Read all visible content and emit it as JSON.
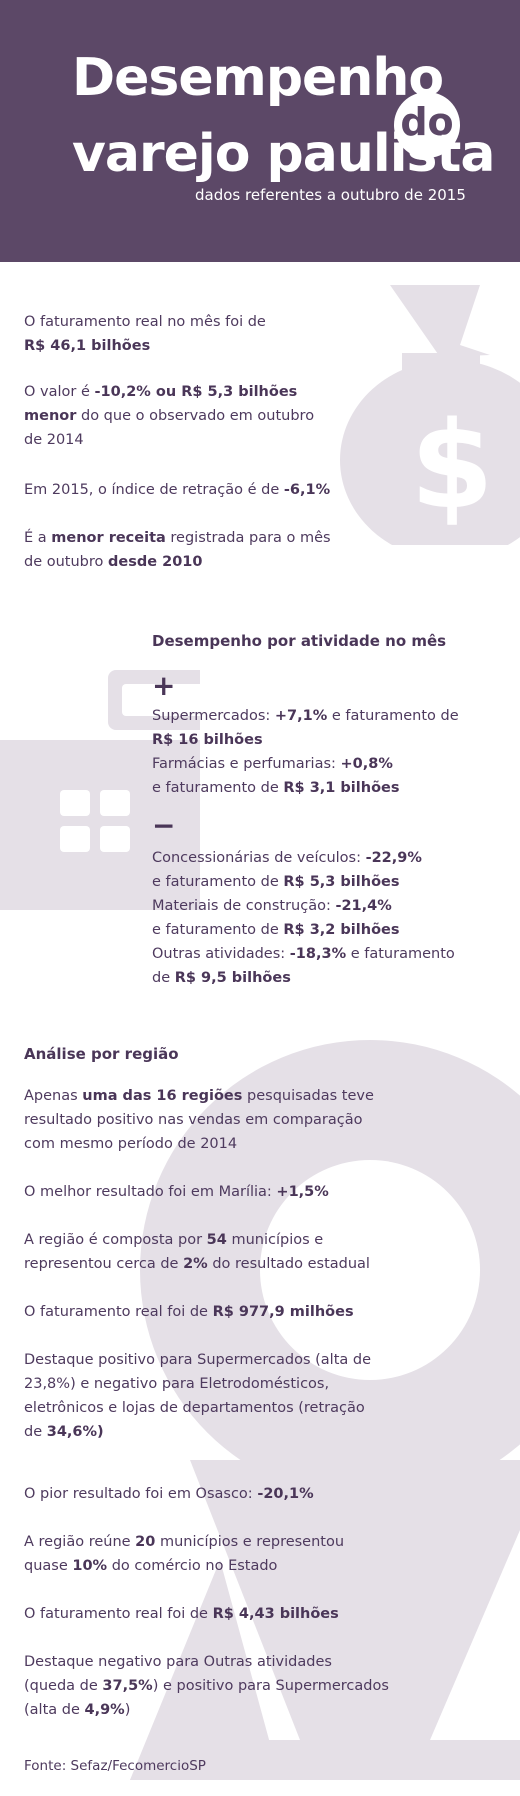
{
  "header": {
    "title_line1": "Desempenho",
    "title_do": "do",
    "title_line2": "varejo paulista",
    "subtitle": "dados referentes a outubro de 2015"
  },
  "summary": {
    "p1_text": "O faturamento real no mês foi de",
    "p1_bold": "R$ 46,1 bilhões",
    "p2_text1": "O valor é",
    "p2_bold1": "-10,2% ou R$ 5,3 bilhões",
    "p2_bold2": "menor",
    "p2_text2": "do que o observado em outubro",
    "p2_text3": "de 2014",
    "p3_text": "Em 2015, o índice de retração é de",
    "p3_bold": "-6,1%",
    "p4_text1": "É a",
    "p4_bold1": "menor receita",
    "p4_text2": "registrada para o mês",
    "p4_text3": "de outubro",
    "p4_bold2": "desde 2010"
  },
  "activity": {
    "heading": "Desempenho por atividade no mês",
    "plus_sign": "+",
    "minus_sign": "−",
    "super_label": "Supermercados:",
    "super_pct": "+7,1%",
    "super_mid": "e faturamento de",
    "super_value": "R$ 16 bilhões",
    "farm_label": "Farmácias e perfumarias:",
    "farm_pct": "+0,8%",
    "farm_mid": "e faturamento de",
    "farm_value": "R$ 3,1 bilhões",
    "conc_label": "Concessionárias de veículos:",
    "conc_pct": "-22,9%",
    "conc_mid": "e faturamento de",
    "conc_value": "R$ 5,3 bilhões",
    "mat_label": "Materiais de construção:",
    "mat_pct": "-21,4%",
    "mat_mid": "e faturamento de",
    "mat_value": "R$ 3,2 bilhões",
    "out_label": "Outras atividades:",
    "out_pct": "-18,3%",
    "out_mid": "e faturamento",
    "out_pre": "de",
    "out_value": "R$ 9,5 bilhões"
  },
  "region": {
    "heading": "Análise por região",
    "r1_text1": "Apenas",
    "r1_bold": "uma das 16 regiões",
    "r1_text2": "pesquisadas teve",
    "r1_text3": "resultado positivo nas vendas em comparação",
    "r1_text4": "com mesmo período de 2014",
    "r2_text": "O melhor resultado foi em Marília:",
    "r2_bold": "+1,5%",
    "r3_text1": "A região é composta por",
    "r3_bold1": "54",
    "r3_text2": "municípios e",
    "r3_text3": "representou cerca de",
    "r3_bold2": "2%",
    "r3_text4": "do resultado estadual",
    "r4_text": "O faturamento real foi de",
    "r4_bold": "R$ 977,9 milhões",
    "r5_text1": "Destaque positivo para Supermercados (alta de",
    "r5_text2": "23,8%) e negativo para Eletrodomésticos,",
    "r5_text3": "eletrônicos e lojas de departamentos (retração",
    "r5_text4": "de",
    "r5_bold": "34,6%)",
    "r6_text": "O pior resultado foi em Osasco:",
    "r6_bold": "-20,1%",
    "r7_text1": "A região reúne",
    "r7_bold1": "20",
    "r7_text2": "municípios e representou",
    "r7_text3": "quase",
    "r7_bold2": "10%",
    "r7_text4": "do comércio no Estado",
    "r8_text": "O faturamento real foi de",
    "r8_bold": "R$ 4,43 bilhões",
    "r9_text1": "Destaque negativo para Outras atividades",
    "r9_text2": "(queda de",
    "r9_bold": "37,5%",
    "r9_text3": ") e positivo para Supermercados",
    "r9_text4": "(alta de",
    "r9_bold2": "4,9%",
    "r9_text5": ")"
  },
  "footer": {
    "source": "Fonte: Sefaz/FecomercioSP"
  },
  "colors": {
    "header_bg": "#5c4867",
    "text": "#4e3a5e",
    "watermark": "#e5e0e7"
  },
  "icons": [
    "money-bag-icon",
    "cash-register-icon",
    "map-pin-icon"
  ]
}
